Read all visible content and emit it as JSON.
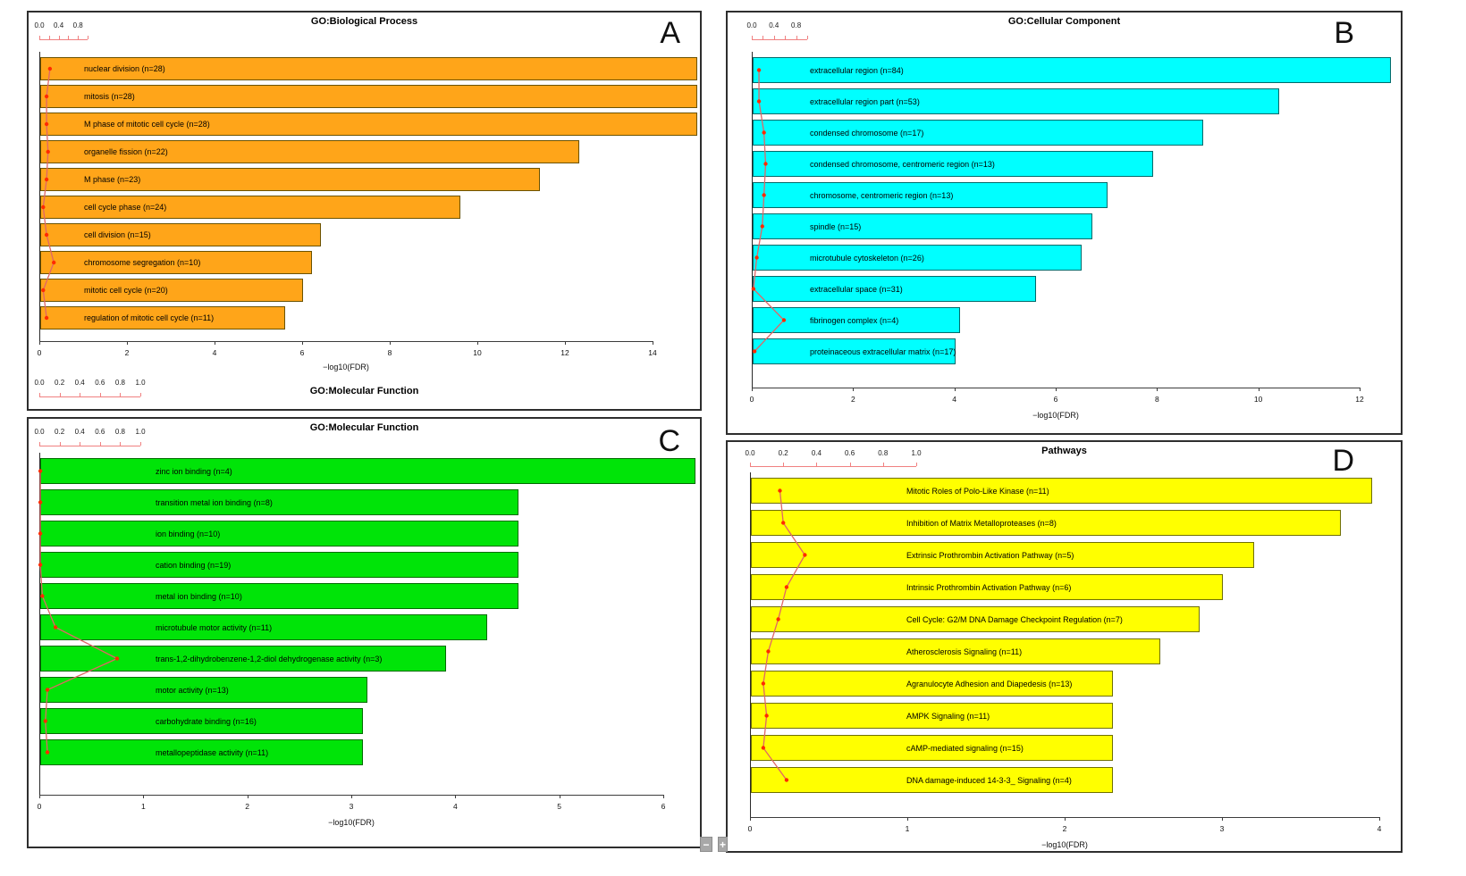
{
  "figure": {
    "background": "#ffffff",
    "line_color": "#e06666",
    "point_color": "#ff2b00",
    "red_axis_color": "#f08080"
  },
  "viewer": {
    "minus_label": "−",
    "plus_label": "+"
  },
  "chart_data": [
    {
      "panel": "A",
      "type": "bar",
      "title": "GO:Biological Process",
      "panel_letter": "A",
      "bar_color": "#ffa519",
      "bar_border": "#6b5200",
      "xlabel": "−log10(FDR)",
      "xlim": [
        0,
        14
      ],
      "x_ticks": [
        0,
        2,
        4,
        6,
        8,
        10,
        12,
        14
      ],
      "top_axis": {
        "range": [
          0,
          1
        ],
        "tick_step": 0.2,
        "labels": [
          "0.0",
          "0.4",
          "0.8"
        ]
      },
      "categories": [
        "nuclear division (n=28)",
        "mitosis (n=28)",
        "M phase of mitotic cell cycle (n=28)",
        "organelle fission (n=22)",
        "M phase (n=23)",
        "cell cycle phase (n=24)",
        "cell division (n=15)",
        "chromosome segregation (n=10)",
        "mitotic cell cycle (n=20)",
        "regulation of mitotic cell cycle (n=11)"
      ],
      "values": [
        15.0,
        15.0,
        15.0,
        12.3,
        11.4,
        9.6,
        6.4,
        6.2,
        6.0,
        5.6
      ],
      "line_series": {
        "name": "ratio",
        "values": [
          0.22,
          0.15,
          0.15,
          0.18,
          0.15,
          0.08,
          0.15,
          0.3,
          0.08,
          0.15
        ]
      },
      "footer": {
        "title": "GO:Molecular Function",
        "axis_labels": [
          "0.0",
          "0.2",
          "0.4",
          "0.6",
          "0.8",
          "1.0"
        ],
        "tick_step": 0.2
      }
    },
    {
      "panel": "B",
      "type": "bar",
      "title": "GO:Cellular Component",
      "panel_letter": "B",
      "bar_color": "#00ffff",
      "bar_border": "#006969",
      "xlabel": "−log10(FDR)",
      "xlim": [
        0,
        12
      ],
      "x_ticks": [
        0,
        2,
        4,
        6,
        8,
        10,
        12
      ],
      "top_axis": {
        "range": [
          0,
          1
        ],
        "tick_step": 0.2,
        "labels": [
          "0.0",
          "0.4",
          "0.8"
        ]
      },
      "categories": [
        "extracellular region (n=84)",
        "extracellular region part (n=53)",
        "condensed chromosome (n=17)",
        "condensed chromosome, centromeric region (n=13)",
        "chromosome, centromeric region (n=13)",
        "spindle (n=15)",
        "microtubule cytoskeleton (n=26)",
        "extracellular space (n=31)",
        "fibrinogen complex (n=4)",
        "proteinaceous extracellular matrix (n=17)"
      ],
      "values": [
        12.6,
        10.4,
        8.9,
        7.9,
        7.0,
        6.7,
        6.5,
        5.6,
        4.1,
        4.0
      ],
      "line_series": {
        "name": "ratio",
        "values": [
          0.13,
          0.13,
          0.22,
          0.25,
          0.22,
          0.19,
          0.09,
          0.03,
          0.58,
          0.05
        ]
      }
    },
    {
      "panel": "C",
      "type": "bar",
      "title": "GO:Molecular Function",
      "panel_letter": "C",
      "bar_color": "#00e408",
      "bar_border": "#006b00",
      "xlabel": "−log10(FDR)",
      "xlim": [
        0,
        6
      ],
      "x_ticks": [
        0,
        1,
        2,
        3,
        4,
        5,
        6
      ],
      "top_axis": {
        "range": [
          0,
          1
        ],
        "tick_step": 0.2,
        "labels": [
          "0.0",
          "0.2",
          "0.4",
          "0.6",
          "0.8",
          "1.0"
        ]
      },
      "categories": [
        "zinc ion binding (n=4)",
        "transition metal ion binding (n=8)",
        "ion binding (n=10)",
        "cation binding (n=19)",
        "metal ion binding (n=10)",
        "microtubule motor activity (n=11)",
        "trans-1,2-dihydrobenzene-1,2-diol dehydrogenase activity (n=3)",
        "motor activity (n=13)",
        "carbohydrate binding (n=16)",
        "metallopeptidase activity (n=11)"
      ],
      "values": [
        6.3,
        4.6,
        4.6,
        4.6,
        4.6,
        4.3,
        3.9,
        3.15,
        3.1,
        3.1
      ],
      "line_series": {
        "name": "ratio",
        "values": [
          0.01,
          0.01,
          0.01,
          0.01,
          0.03,
          0.16,
          0.77,
          0.08,
          0.06,
          0.08
        ]
      }
    },
    {
      "panel": "D",
      "type": "bar",
      "title": "Pathways",
      "panel_letter": "D",
      "bar_color": "#ffff00",
      "bar_border": "#6f6f00",
      "xlabel": "−log10(FDR)",
      "xlim": [
        0,
        4
      ],
      "x_ticks": [
        0,
        1,
        2,
        3,
        4
      ],
      "top_axis": {
        "range": [
          0,
          1
        ],
        "tick_step": 0.2,
        "labels": [
          "0.0",
          "0.2",
          "0.4",
          "0.6",
          "0.8",
          "1.0"
        ]
      },
      "categories": [
        "Mitotic Roles of Polo-Like Kinase (n=11)",
        "Inhibition of Matrix Metalloproteases (n=8)",
        "Extrinsic Prothrombin Activation Pathway (n=5)",
        "Intrinsic Prothrombin Activation Pathway (n=6)",
        "Cell Cycle: G2/M DNA Damage Checkpoint Regulation (n=7)",
        "Atherosclerosis Signaling (n=11)",
        "Agranulocyte Adhesion and Diapedesis (n=13)",
        "AMPK Signaling (n=11)",
        "cAMP-mediated signaling (n=15)",
        "DNA damage-induced 14-3-3_ Signaling (n=4)"
      ],
      "values": [
        3.95,
        3.75,
        3.2,
        3.0,
        2.85,
        2.6,
        2.3,
        2.3,
        2.3,
        2.3
      ],
      "line_series": {
        "name": "ratio",
        "values": [
          0.18,
          0.2,
          0.33,
          0.22,
          0.17,
          0.11,
          0.08,
          0.1,
          0.08,
          0.22
        ]
      }
    }
  ]
}
